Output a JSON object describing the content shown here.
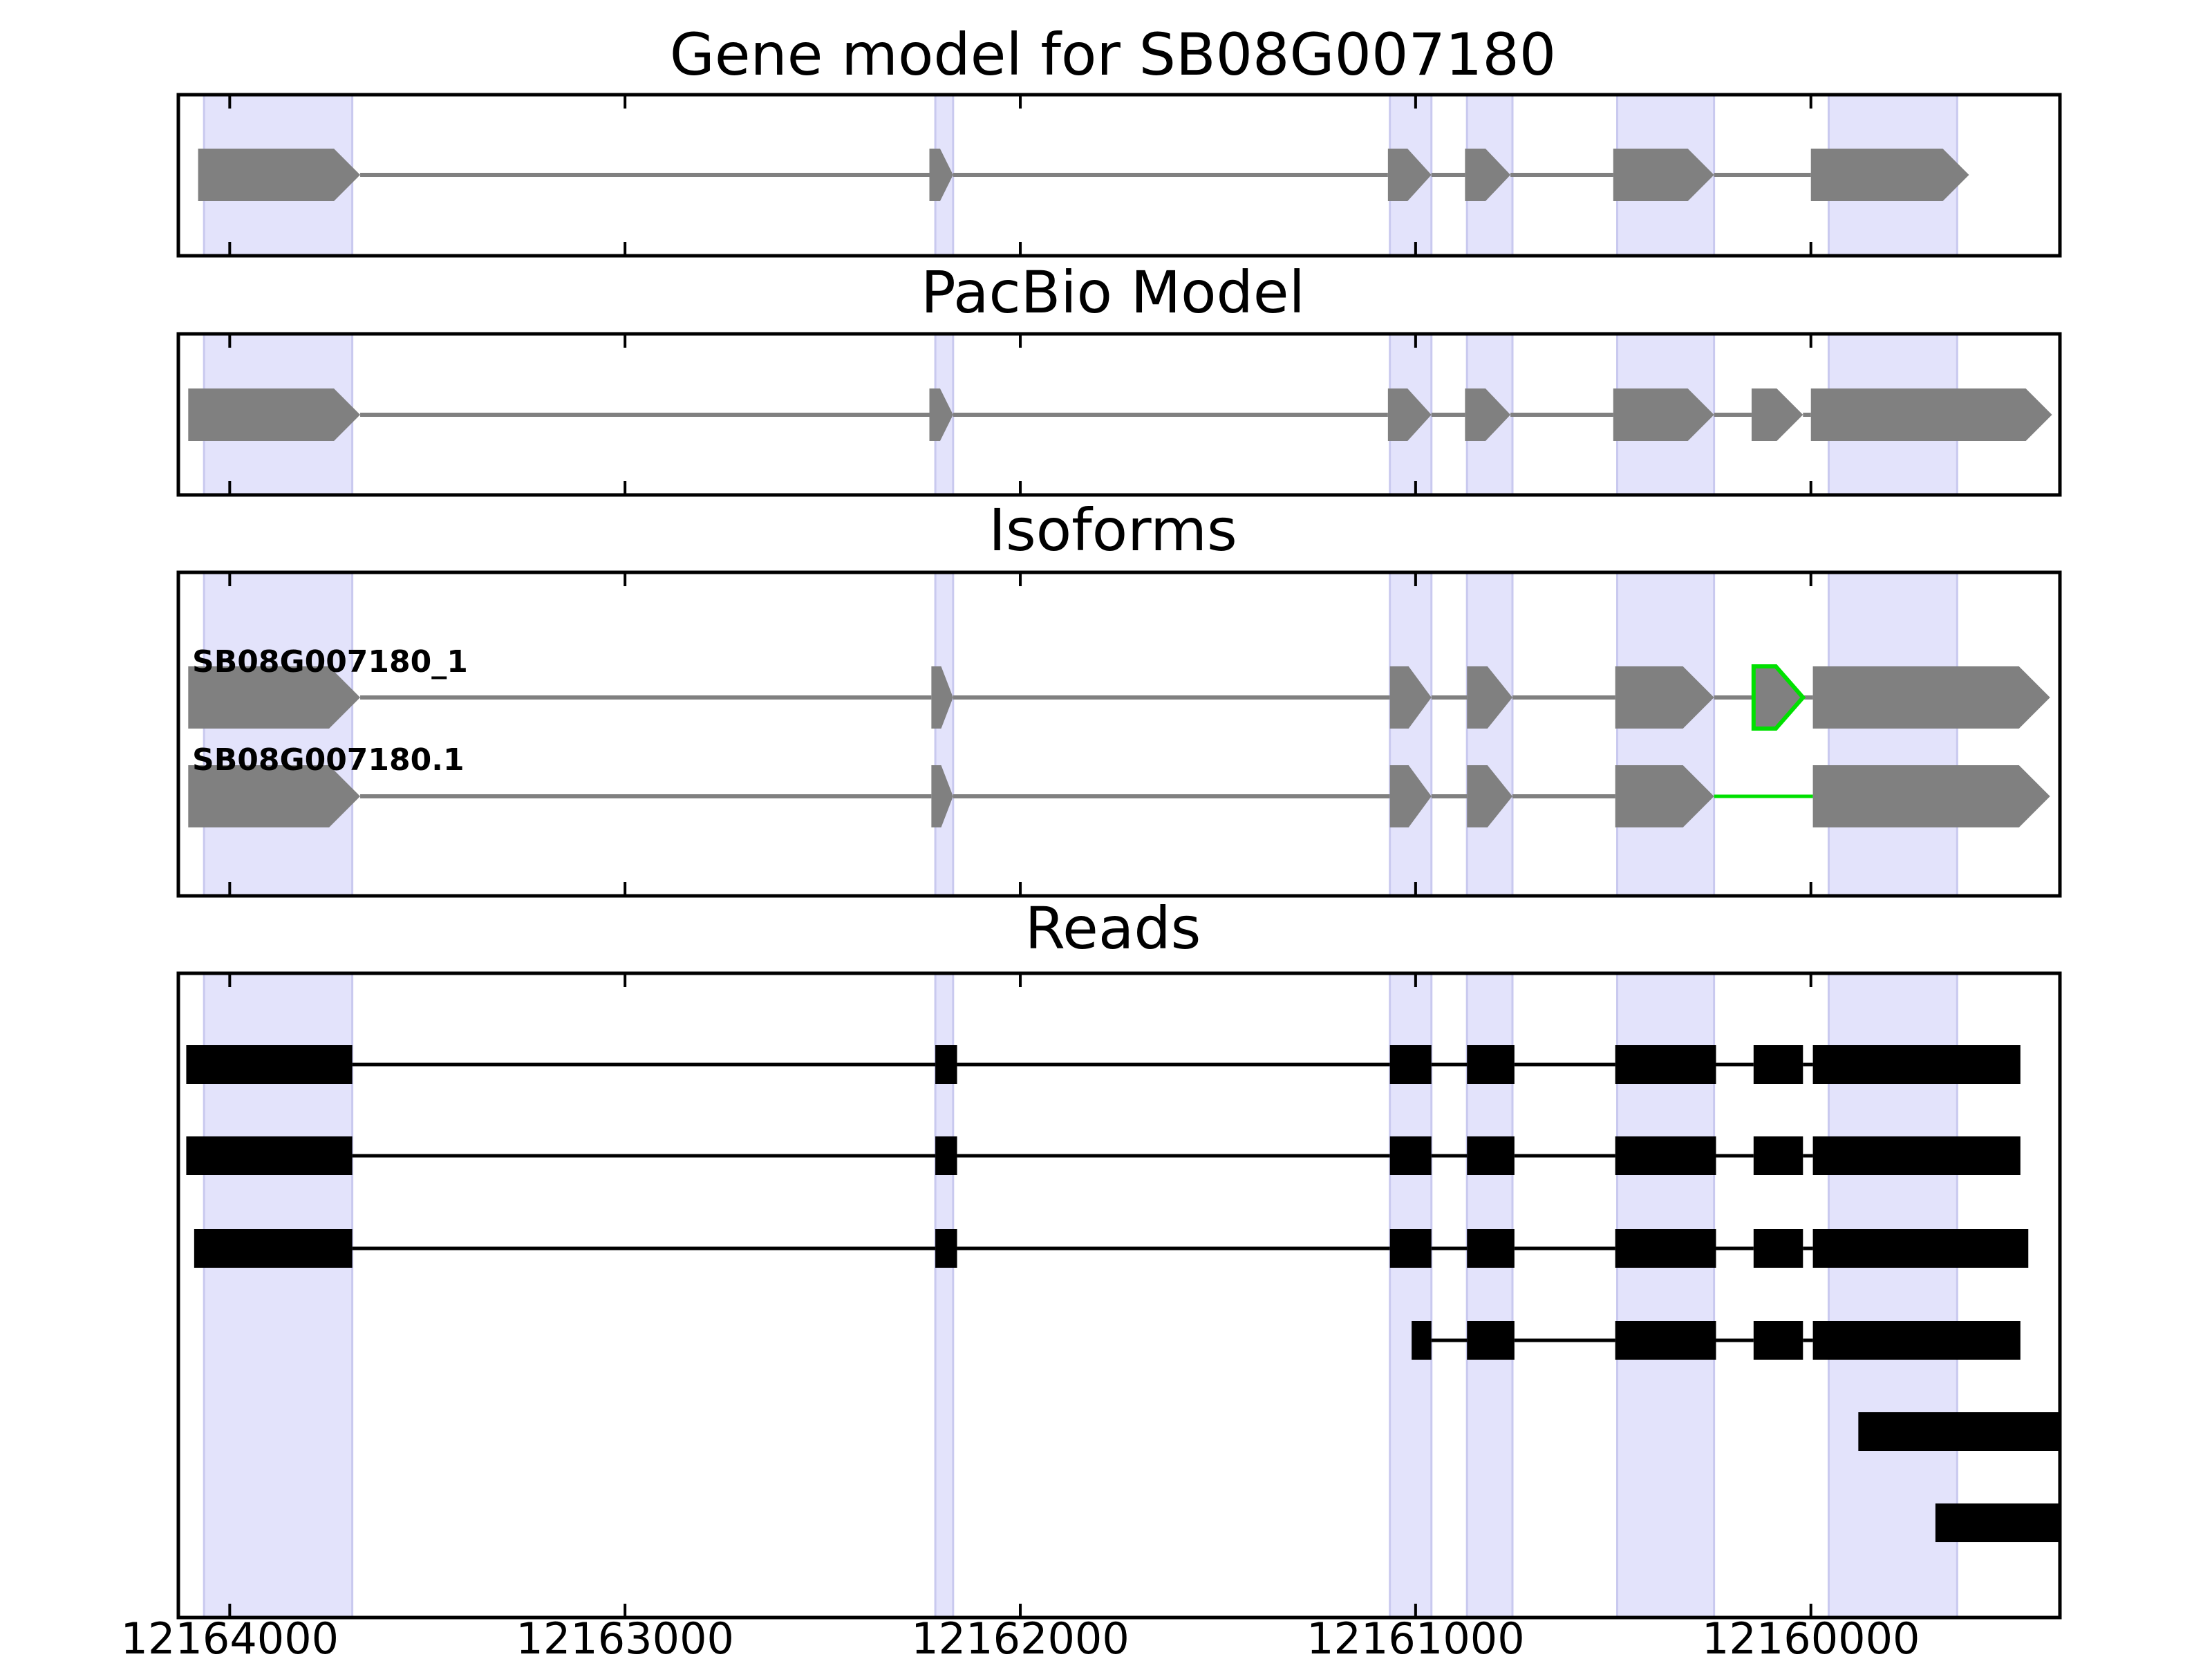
{
  "figure": {
    "type": "gene-structure-tracks",
    "axis": {
      "direction": "descending",
      "range": [
        12164130,
        12159370
      ],
      "ticks": [
        12164000,
        12163000,
        12162000,
        12161000,
        12160000
      ],
      "tick_labels": [
        "12164000",
        "12163000",
        "12162000",
        "12161000",
        "12160000"
      ]
    },
    "highlight_color": "#e3e3fb",
    "exon_color": "#808080",
    "read_color": "#000000",
    "novel_color": "#00e000",
    "highlight_regions": [
      [
        12164065,
        12163690
      ],
      [
        12162215,
        12162170
      ],
      [
        12161065,
        12160960
      ],
      [
        12160870,
        12160755
      ],
      [
        12160490,
        12160245
      ],
      [
        12159955,
        12159630
      ]
    ]
  },
  "panels": [
    {
      "key": "gene_model",
      "title": "Gene model for SB08G007180",
      "tracks": [
        {
          "label": "",
          "exons": [
            [
              12164080,
              12163670
            ],
            [
              12162230,
              12162170
            ],
            [
              12161070,
              12160960
            ],
            [
              12160875,
              12160760
            ],
            [
              12160500,
              12160245
            ],
            [
              12160000,
              12159600
            ]
          ],
          "novel_exons": [],
          "novel_introns": []
        }
      ]
    },
    {
      "key": "pacbio",
      "title": "PacBio Model",
      "tracks": [
        {
          "label": "",
          "exons": [
            [
              12164105,
              12163670
            ],
            [
              12162230,
              12162170
            ],
            [
              12161070,
              12160960
            ],
            [
              12160875,
              12160760
            ],
            [
              12160500,
              12160245
            ],
            [
              12160150,
              12160020
            ],
            [
              12160000,
              12159390
            ]
          ],
          "novel_exons": [],
          "novel_introns": []
        }
      ]
    },
    {
      "key": "isoforms",
      "title": "Isoforms",
      "tracks": [
        {
          "label": "SB08G007180_1",
          "exons": [
            [
              12164105,
              12163670
            ],
            [
              12162225,
              12162170
            ],
            [
              12161065,
              12160960
            ],
            [
              12160870,
              12160755
            ],
            [
              12160495,
              12160245
            ],
            [
              12160145,
              12160020
            ],
            [
              12159995,
              12159395
            ]
          ],
          "novel_exons": [
            5
          ],
          "novel_introns": []
        },
        {
          "label": "SB08G007180.1",
          "exons": [
            [
              12164105,
              12163670
            ],
            [
              12162225,
              12162170
            ],
            [
              12161065,
              12160960
            ],
            [
              12160870,
              12160755
            ],
            [
              12160495,
              12160245
            ],
            [
              12159995,
              12159395
            ]
          ],
          "novel_exons": [],
          "novel_introns": [
            4
          ]
        }
      ]
    },
    {
      "key": "reads",
      "title": "Reads",
      "tracks": [
        {
          "exons": [
            [
              12164110,
              12163690
            ],
            [
              12162215,
              12162160
            ],
            [
              12161065,
              12160960
            ],
            [
              12160870,
              12160750
            ],
            [
              12160495,
              12160240
            ],
            [
              12160145,
              12160020
            ],
            [
              12159995,
              12159470
            ]
          ]
        },
        {
          "exons": [
            [
              12164110,
              12163690
            ],
            [
              12162215,
              12162160
            ],
            [
              12161065,
              12160960
            ],
            [
              12160870,
              12160750
            ],
            [
              12160495,
              12160240
            ],
            [
              12160145,
              12160020
            ],
            [
              12159995,
              12159470
            ]
          ]
        },
        {
          "exons": [
            [
              12164090,
              12163690
            ],
            [
              12162215,
              12162160
            ],
            [
              12161065,
              12160960
            ],
            [
              12160870,
              12160750
            ],
            [
              12160495,
              12160240
            ],
            [
              12160145,
              12160020
            ],
            [
              12159995,
              12159450
            ]
          ]
        },
        {
          "exons": [
            [
              12161010,
              12160960
            ],
            [
              12160870,
              12160750
            ],
            [
              12160495,
              12160240
            ],
            [
              12160145,
              12160020
            ],
            [
              12159995,
              12159470
            ]
          ]
        },
        {
          "exons": [
            [
              12159880,
              12159370
            ]
          ]
        },
        {
          "exons": [
            [
              12159685,
              12159370
            ]
          ]
        }
      ]
    }
  ]
}
